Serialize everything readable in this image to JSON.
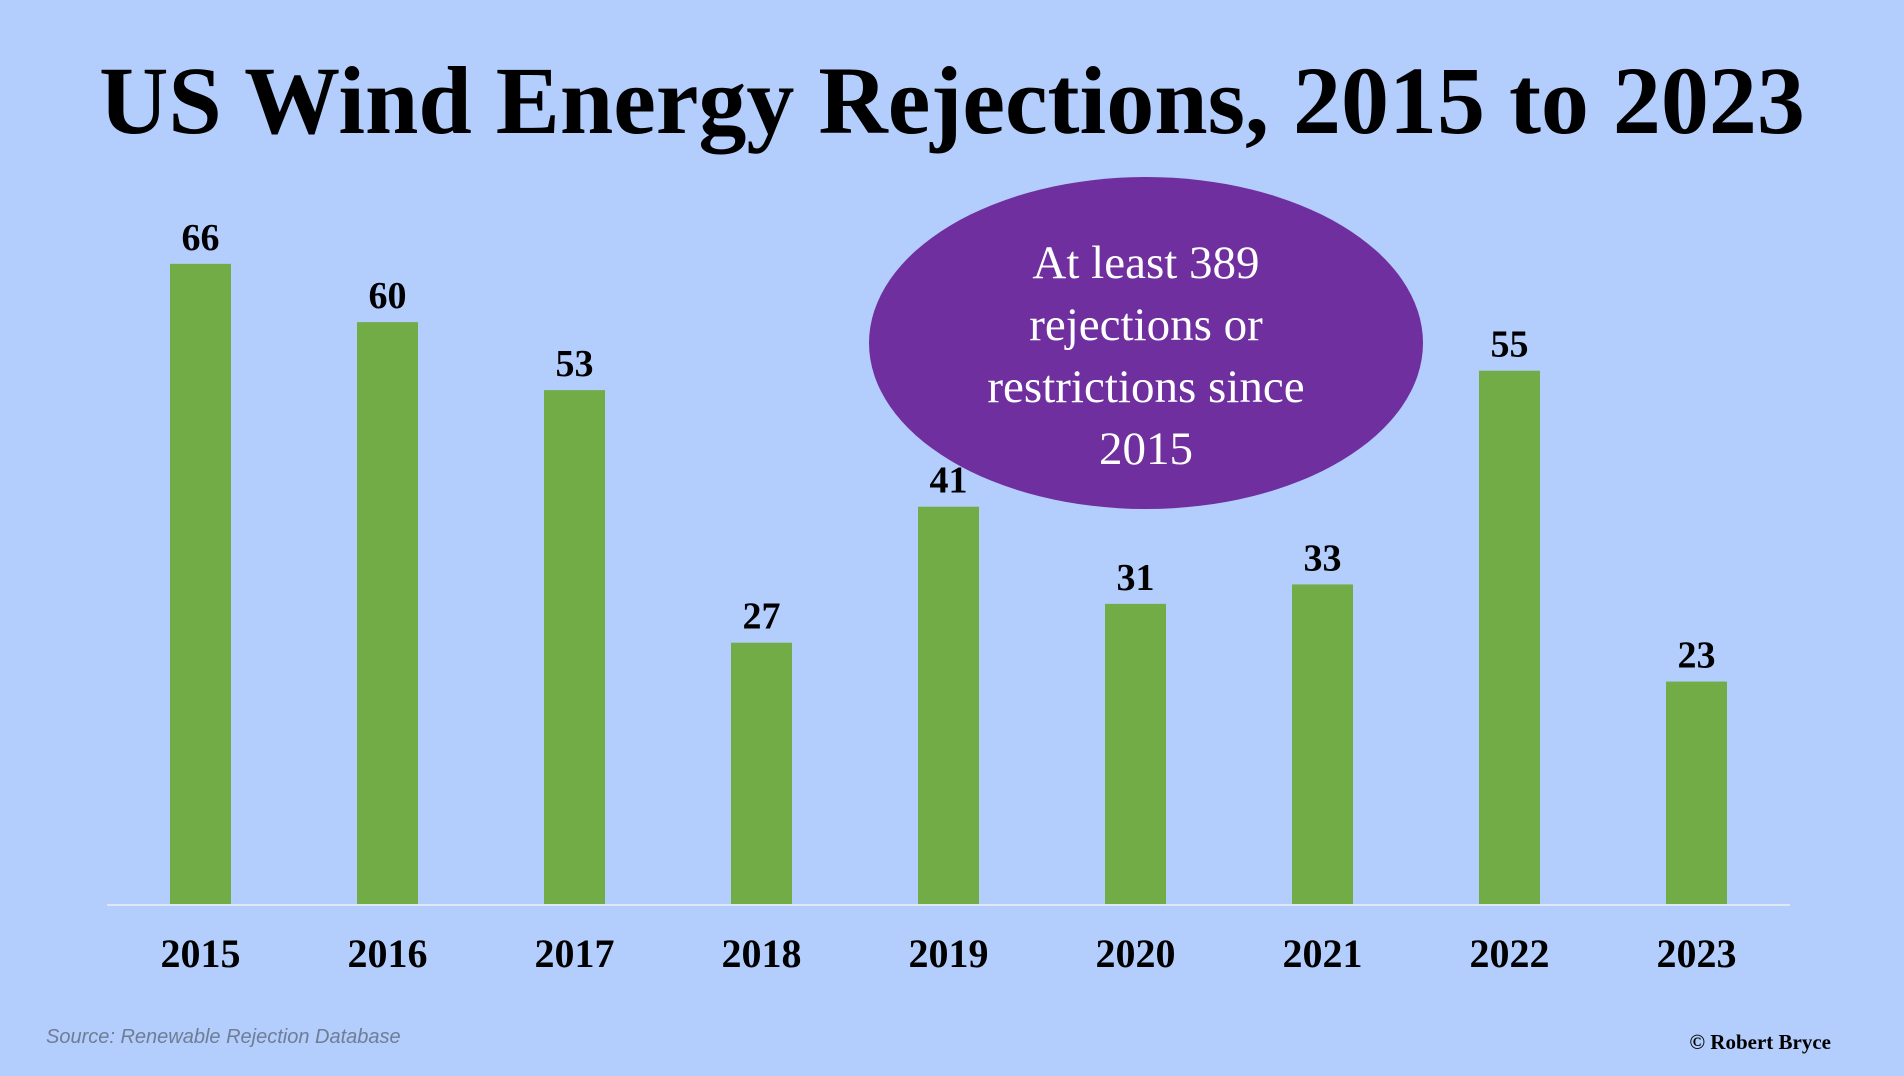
{
  "chart_data": {
    "type": "bar",
    "title": "US Wind Energy Rejections, 2015 to 2023",
    "categories": [
      "2015",
      "2016",
      "2017",
      "2018",
      "2019",
      "2020",
      "2021",
      "2022",
      "2023"
    ],
    "values": [
      66,
      60,
      53,
      27,
      41,
      31,
      33,
      55,
      23
    ],
    "xlabel": "",
    "ylabel": "",
    "ylim": [
      0,
      70
    ],
    "grid": false,
    "data_labels": true,
    "bar_color": "#72ac47"
  },
  "callout": {
    "text": "At least 389 rejections or restrictions since 2015",
    "color": "#6f2f9f"
  },
  "source_note": "Source: Renewable Rejection Database",
  "credit": "© Robert Bryce",
  "colors": {
    "background": "#b3cdfc",
    "bar": "#72ac47",
    "callout": "#6f2f9f",
    "axis_line": "#dfe7f5"
  }
}
